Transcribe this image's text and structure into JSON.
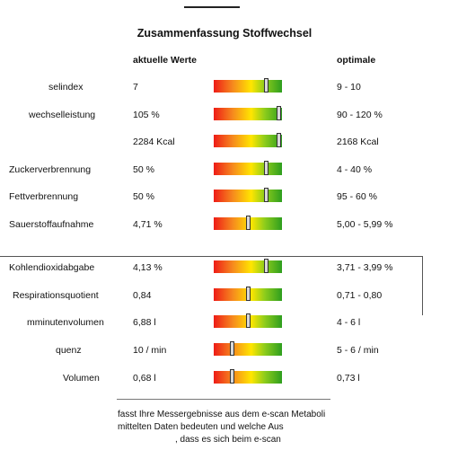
{
  "title": "Zusammenfassung Stoffwechsel",
  "columns": {
    "current": "aktuelle Werte",
    "optimal": "optimale"
  },
  "rows": [
    {
      "label": "selindex",
      "current": "7",
      "optimal": "9 - 10",
      "marker": 0.77
    },
    {
      "label": "wechselleistung",
      "current": "105 %",
      "optimal": "90 - 120 %",
      "marker": 0.95
    },
    {
      "label": "",
      "current": "2284 Kcal",
      "optimal": "2168 Kcal",
      "marker": 0.95
    },
    {
      "label": "Zuckerverbrennung",
      "current": "50 %",
      "optimal": "4 - 40 %",
      "marker": 0.77
    },
    {
      "label": "Fettverbrennung",
      "current": "50 %",
      "optimal": "95 - 60 %",
      "marker": 0.77
    },
    {
      "label": "Sauerstoffaufnahme",
      "current": "4,71 %",
      "optimal": "5,00 - 5,99 %",
      "marker": 0.5
    },
    {
      "label": "Kohlendioxidabgabe",
      "current": "4,13 %",
      "optimal": "3,71 - 3,99 %",
      "marker": 0.77
    },
    {
      "label": "Respirationsquotient",
      "current": "0,84",
      "optimal": "0,71 - 0,80",
      "marker": 0.5
    },
    {
      "label": "mminutenvolumen",
      "current": "6,88 l",
      "optimal": "4 - 6 l",
      "marker": 0.5
    },
    {
      "label": "quenz",
      "current": "10 / min",
      "optimal": "5 - 6 / min",
      "marker": 0.27
    },
    {
      "label": "Volumen",
      "current": "0,68 l",
      "optimal": "0,73 l",
      "marker": 0.27
    }
  ],
  "footer": {
    "line1": "fasst Ihre Messergebnisse aus dem e-scan Metaboli",
    "line2": "mittelten Daten bedeuten und welche Aus",
    "line3": ", dass es sich beim e-scan"
  }
}
